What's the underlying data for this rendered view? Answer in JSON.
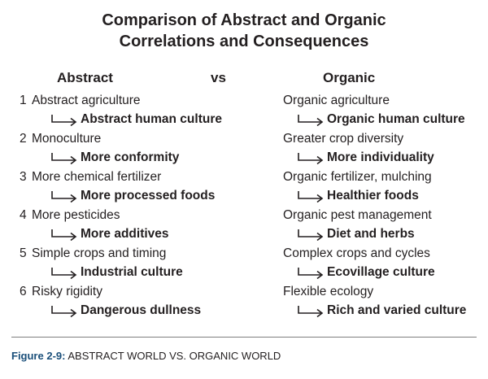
{
  "title": {
    "line1": "Comparison of Abstract and Organic",
    "line2": "Correlations and Consequences"
  },
  "headers": {
    "left": "Abstract",
    "middle": "vs",
    "right": "Organic"
  },
  "rows": [
    {
      "num": "1",
      "abstract": "Abstract agriculture",
      "abstract_result": "Abstract human culture",
      "organic": "Organic agriculture",
      "organic_result": "Organic human culture"
    },
    {
      "num": "2",
      "abstract": "Monoculture",
      "abstract_result": "More conformity",
      "organic": "Greater crop diversity",
      "organic_result": "More individuality"
    },
    {
      "num": "3",
      "abstract": "More chemical fertilizer",
      "abstract_result": "More processed foods",
      "organic": "Organic fertilizer, mulching",
      "organic_result": "Healthier foods"
    },
    {
      "num": "4",
      "abstract": "More pesticides",
      "abstract_result": "More additives",
      "organic": "Organic pest management",
      "organic_result": "Diet and herbs"
    },
    {
      "num": "5",
      "abstract": "Simple crops and timing",
      "abstract_result": "Industrial culture",
      "organic": "Complex crops and cycles",
      "organic_result": "Ecovillage culture"
    },
    {
      "num": "6",
      "abstract": " Risky rigidity",
      "abstract_result": "Dangerous dullness",
      "organic": "Flexible ecology",
      "organic_result": "Rich and varied culture"
    }
  ],
  "caption": {
    "label": "Figure 2-9:",
    "text": " ABSTRACT WORLD VS. ORGANIC WORLD"
  },
  "colors": {
    "text": "#231f20",
    "caption_label": "#1a4f7a",
    "rule": "#7f7f7f"
  },
  "icons": {
    "arrow": "corner-arrow-icon"
  }
}
